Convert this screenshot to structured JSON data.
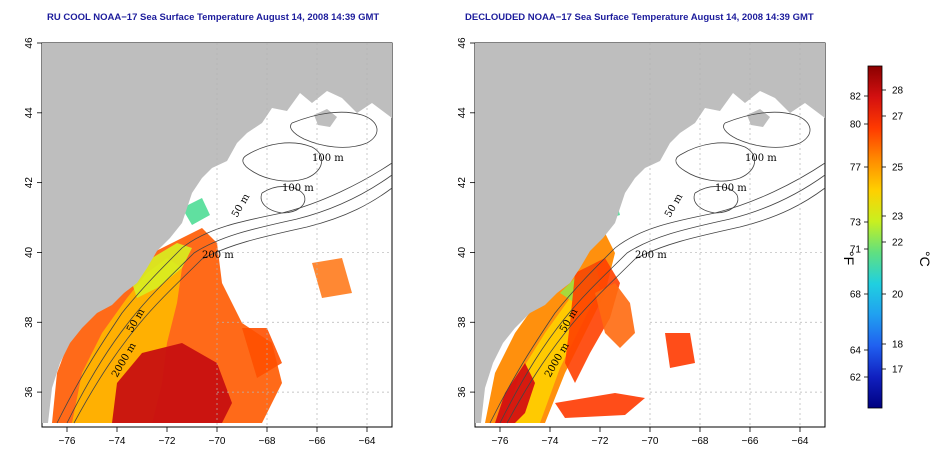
{
  "panels": [
    {
      "id": "left",
      "title": "RU COOL NOAA−17 Sea Surface Temperature August 14, 2008 14:39 GMT",
      "contour_labels": [
        "100 m",
        "100 m",
        "50 m",
        "200 m",
        "50 m",
        "2000 m"
      ]
    },
    {
      "id": "right",
      "title": "DECLOUDED NOAA−17 Sea Surface Temperature August 14, 2008 14:39 GMT",
      "contour_labels": [
        "100 m",
        "100 m",
        "50 m",
        "200 m",
        "50 m",
        "2000 m"
      ]
    }
  ],
  "axes": {
    "x_ticks": [
      "−76",
      "−74",
      "−72",
      "−70",
      "−68",
      "−66",
      "−64"
    ],
    "y_ticks": [
      "36",
      "38",
      "40",
      "42",
      "44",
      "46"
    ],
    "x_range": [
      -77.0,
      -63.0
    ],
    "y_range": [
      35.0,
      46.0
    ]
  },
  "colorbar": {
    "fahrenheit_label": "°F",
    "celsius_label": "°C",
    "fahrenheit_ticks": [
      "82",
      "80",
      "77",
      "73",
      "71",
      "68",
      "64",
      "62"
    ],
    "celsius_ticks": [
      "28",
      "27",
      "25",
      "23",
      "22",
      "20",
      "18",
      "17"
    ],
    "colors": [
      "#8b0000",
      "#d41010",
      "#ff3a00",
      "#ff8a00",
      "#ffd000",
      "#c8f020",
      "#60e080",
      "#20d0e0",
      "#20a0f0",
      "#2060f0",
      "#1020c0",
      "#000080"
    ]
  },
  "colors": {
    "land": "#bebebe",
    "ocean": "#ffffff",
    "title_text": "#1c1c9c",
    "grid": "#b4b4b4"
  }
}
